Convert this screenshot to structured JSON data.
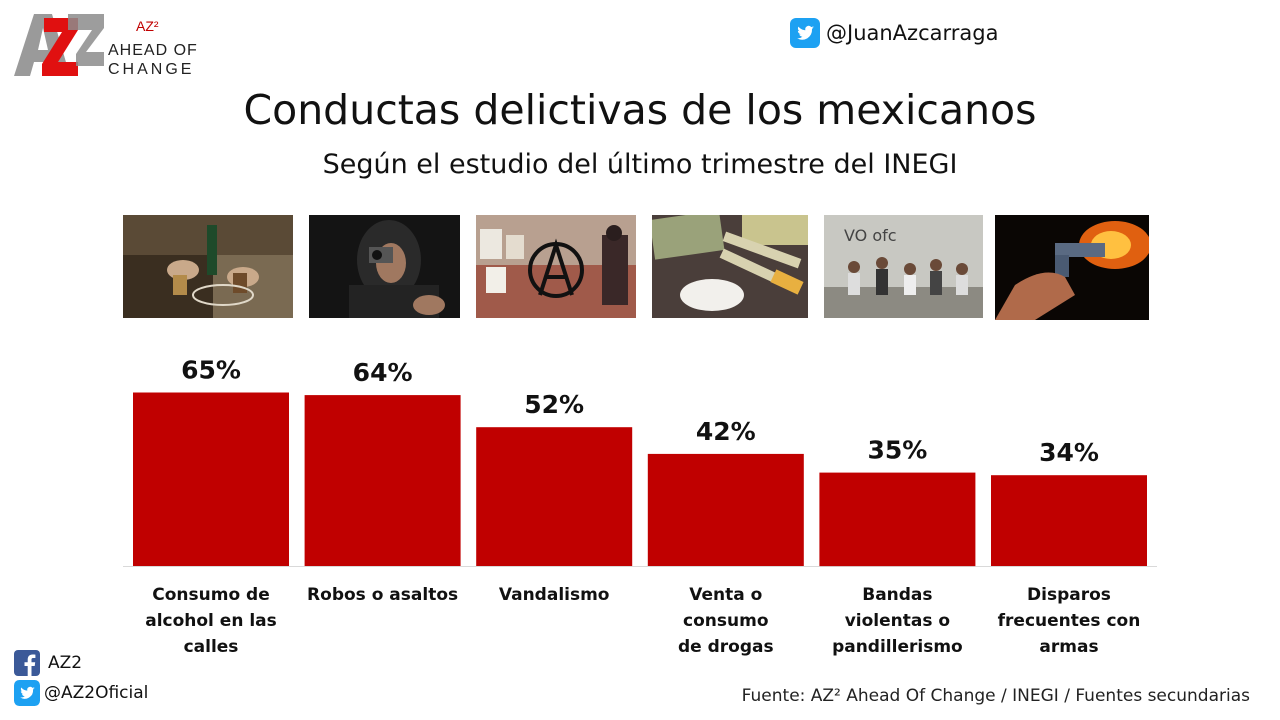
{
  "logo": {
    "mark": "AZ2",
    "superscript": "AZ²",
    "line1": "AHEAD OF",
    "line2": "CHANGE",
    "icon": "az2-logo"
  },
  "header": {
    "twitter_handle": "@JuanAzcarraga",
    "icon": "twitter-icon"
  },
  "photos": [
    {
      "name": "photo-alcohol",
      "subject": "drinking-in-street"
    },
    {
      "name": "photo-robbery",
      "subject": "hooded-man-with-gun"
    },
    {
      "name": "photo-vandalism",
      "subject": "graffiti-wall"
    },
    {
      "name": "photo-drugs",
      "subject": "powder-syringes-money"
    },
    {
      "name": "photo-gangs",
      "subject": "gang-group"
    },
    {
      "name": "photo-shooting",
      "subject": "gun-firing"
    }
  ],
  "chart_data": {
    "type": "bar",
    "title": "Conductas delictivas de los mexicanos",
    "subtitle": "Según el estudio del último trimestre del INEGI",
    "categories": [
      [
        "Consumo de",
        "alcohol en las",
        "calles"
      ],
      [
        "Robos o asaltos"
      ],
      [
        "Vandalismo"
      ],
      [
        "Venta o consumo",
        "de drogas"
      ],
      [
        "Bandas violentas o",
        "pandillerismo"
      ],
      [
        "Disparos",
        "frecuentes con",
        "armas"
      ]
    ],
    "values": [
      65,
      64,
      52,
      42,
      35,
      34
    ],
    "value_labels": [
      "65%",
      "64%",
      "52%",
      "42%",
      "35%",
      "34%"
    ],
    "ylim": [
      0,
      100
    ],
    "grid": false,
    "bar_color": "#c00000"
  },
  "footer": {
    "facebook": "AZ2",
    "twitter": "@AZ2Oficial",
    "source": "Fuente: AZ² Ahead Of Change / INEGI / Fuentes secundarias"
  },
  "colors": {
    "accent": "#c00000",
    "twitter": "#1da1f2",
    "facebook": "#3b5998"
  }
}
